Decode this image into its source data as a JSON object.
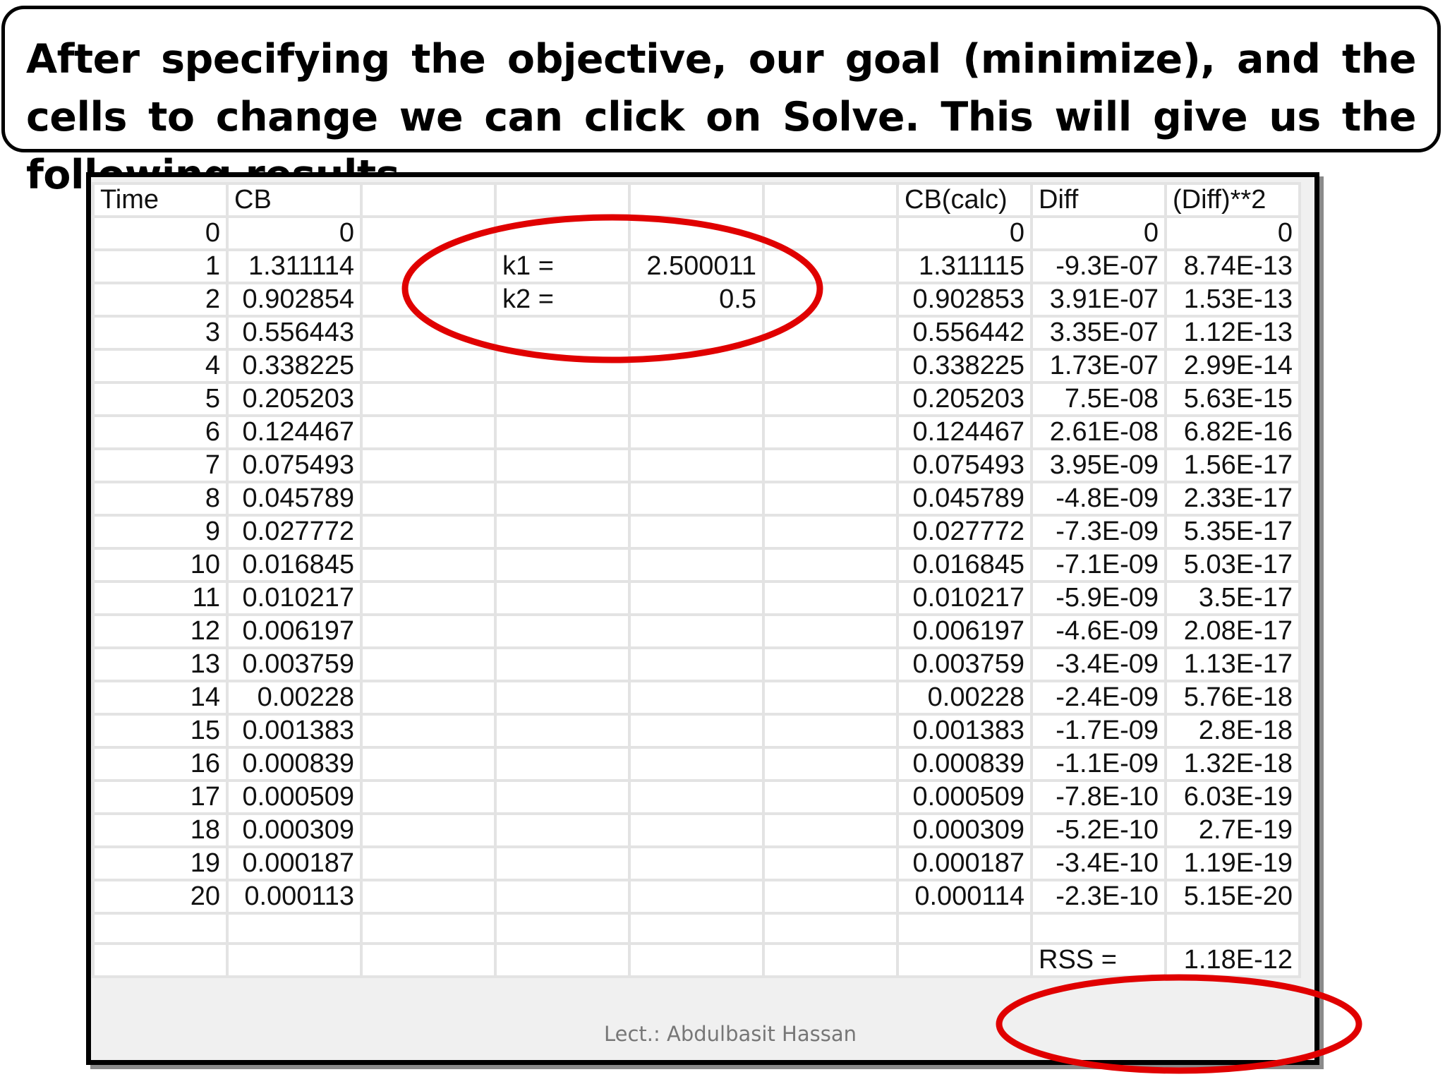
{
  "slide": {
    "title": "After specifying the objective, our goal (minimize), and the cells to change we can click on Solve. This will give us the following results.",
    "footer": "Lect.: Abdulbasit Hassan"
  },
  "colors": {
    "annotation": "#e00000",
    "gridline": "#e3e3e3",
    "frame": "#000000"
  },
  "sheet": {
    "headers": [
      "Time",
      "CB",
      "",
      "",
      "",
      "",
      "CB(calc)",
      "Diff",
      "(Diff)**2"
    ],
    "params": [
      {
        "label": "k1 =",
        "value": "2.500011"
      },
      {
        "label": "k2 =",
        "value": "0.5"
      }
    ],
    "rows": [
      {
        "time": "0",
        "cb": "0",
        "cbcalc": "0",
        "diff": "0",
        "diff2": "0"
      },
      {
        "time": "1",
        "cb": "1.311114",
        "cbcalc": "1.311115",
        "diff": "-9.3E-07",
        "diff2": "8.74E-13"
      },
      {
        "time": "2",
        "cb": "0.902854",
        "cbcalc": "0.902853",
        "diff": "3.91E-07",
        "diff2": "1.53E-13"
      },
      {
        "time": "3",
        "cb": "0.556443",
        "cbcalc": "0.556442",
        "diff": "3.35E-07",
        "diff2": "1.12E-13"
      },
      {
        "time": "4",
        "cb": "0.338225",
        "cbcalc": "0.338225",
        "diff": "1.73E-07",
        "diff2": "2.99E-14"
      },
      {
        "time": "5",
        "cb": "0.205203",
        "cbcalc": "0.205203",
        "diff": "7.5E-08",
        "diff2": "5.63E-15"
      },
      {
        "time": "6",
        "cb": "0.124467",
        "cbcalc": "0.124467",
        "diff": "2.61E-08",
        "diff2": "6.82E-16"
      },
      {
        "time": "7",
        "cb": "0.075493",
        "cbcalc": "0.075493",
        "diff": "3.95E-09",
        "diff2": "1.56E-17"
      },
      {
        "time": "8",
        "cb": "0.045789",
        "cbcalc": "0.045789",
        "diff": "-4.8E-09",
        "diff2": "2.33E-17"
      },
      {
        "time": "9",
        "cb": "0.027772",
        "cbcalc": "0.027772",
        "diff": "-7.3E-09",
        "diff2": "5.35E-17"
      },
      {
        "time": "10",
        "cb": "0.016845",
        "cbcalc": "0.016845",
        "diff": "-7.1E-09",
        "diff2": "5.03E-17"
      },
      {
        "time": "11",
        "cb": "0.010217",
        "cbcalc": "0.010217",
        "diff": "-5.9E-09",
        "diff2": "3.5E-17"
      },
      {
        "time": "12",
        "cb": "0.006197",
        "cbcalc": "0.006197",
        "diff": "-4.6E-09",
        "diff2": "2.08E-17"
      },
      {
        "time": "13",
        "cb": "0.003759",
        "cbcalc": "0.003759",
        "diff": "-3.4E-09",
        "diff2": "1.13E-17"
      },
      {
        "time": "14",
        "cb": "0.00228",
        "cbcalc": "0.00228",
        "diff": "-2.4E-09",
        "diff2": "5.76E-18"
      },
      {
        "time": "15",
        "cb": "0.001383",
        "cbcalc": "0.001383",
        "diff": "-1.7E-09",
        "diff2": "2.8E-18"
      },
      {
        "time": "16",
        "cb": "0.000839",
        "cbcalc": "0.000839",
        "diff": "-1.1E-09",
        "diff2": "1.32E-18"
      },
      {
        "time": "17",
        "cb": "0.000509",
        "cbcalc": "0.000509",
        "diff": "-7.8E-10",
        "diff2": "6.03E-19"
      },
      {
        "time": "18",
        "cb": "0.000309",
        "cbcalc": "0.000309",
        "diff": "-5.2E-10",
        "diff2": "2.7E-19"
      },
      {
        "time": "19",
        "cb": "0.000187",
        "cbcalc": "0.000187",
        "diff": "-3.4E-10",
        "diff2": "1.19E-19"
      },
      {
        "time": "20",
        "cb": "0.000113",
        "cbcalc": "0.000114",
        "diff": "-2.3E-10",
        "diff2": "5.15E-20"
      }
    ],
    "rss": {
      "label": "RSS =",
      "value": "1.18E-12"
    }
  }
}
